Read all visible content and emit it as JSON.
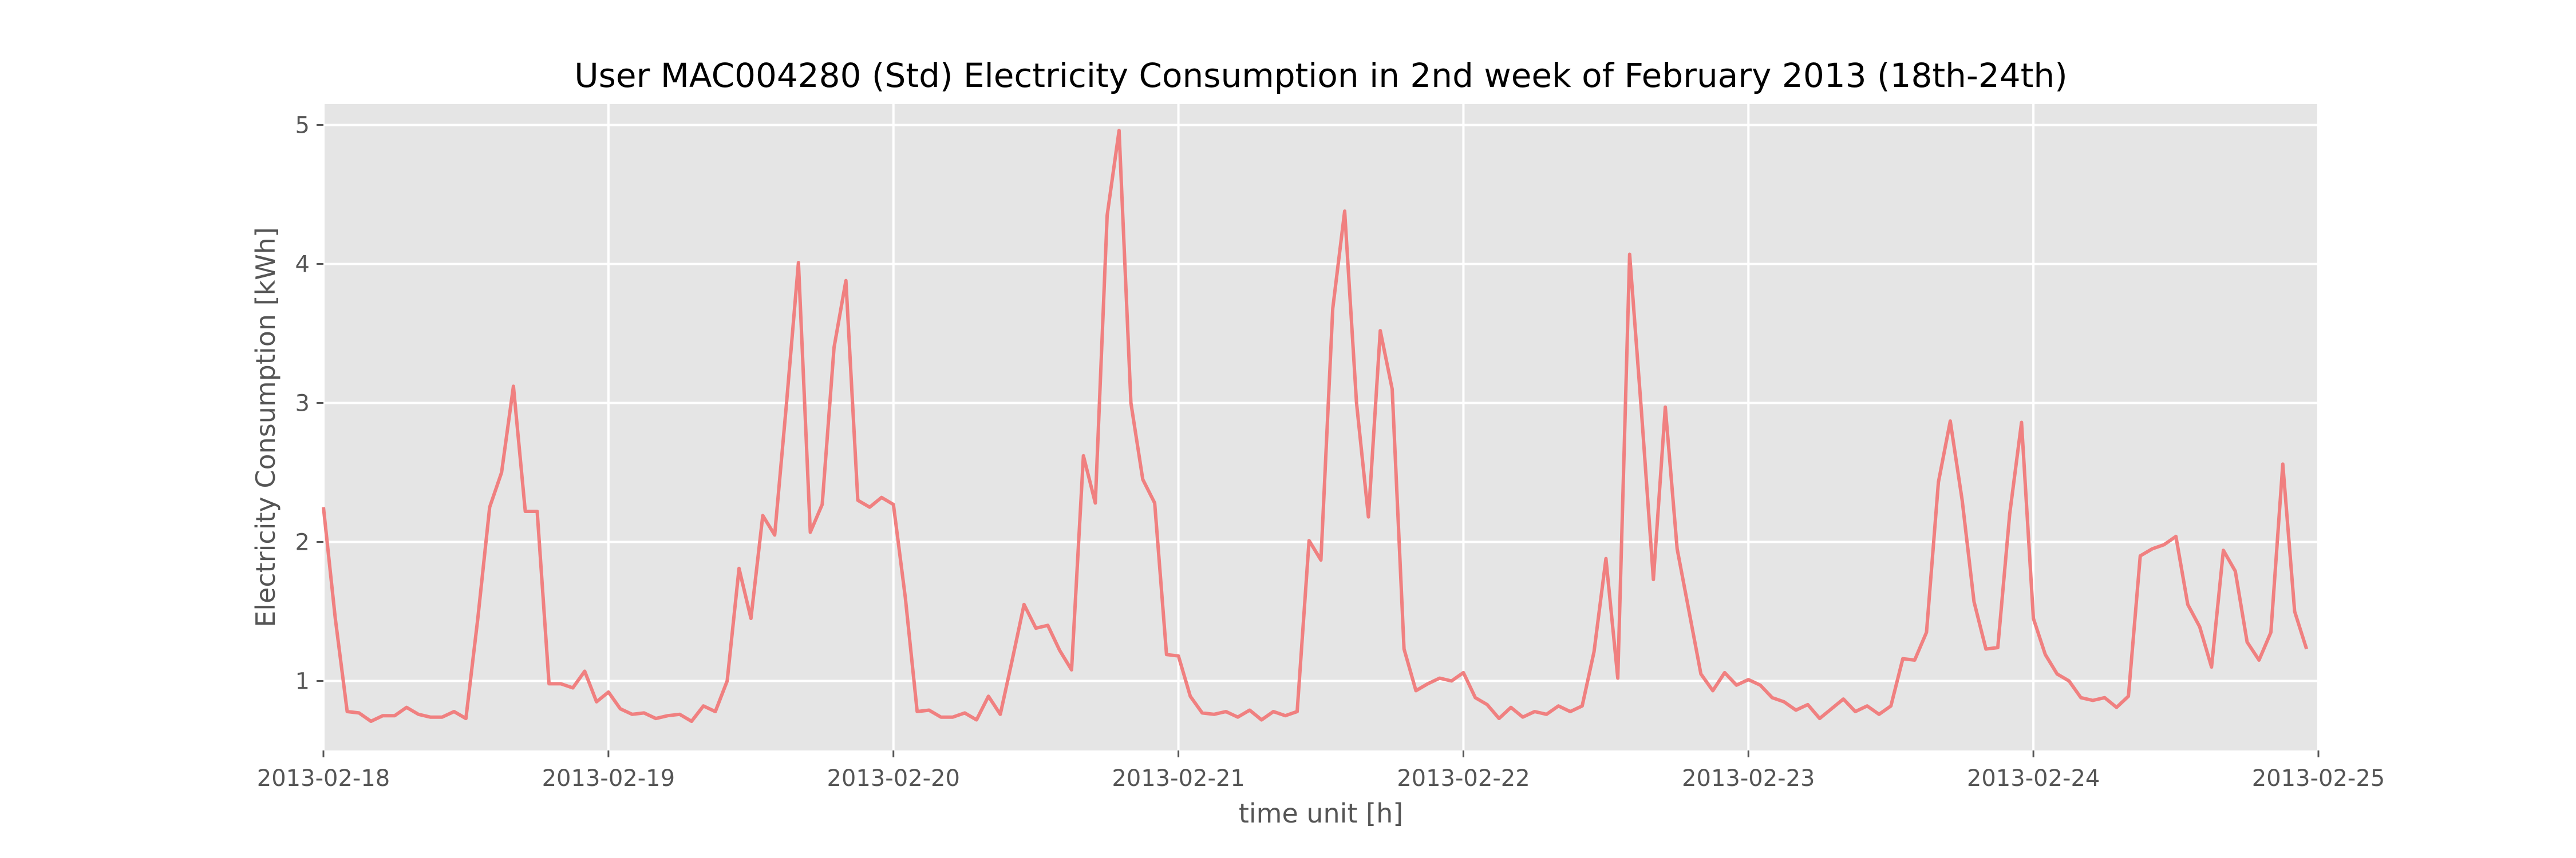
{
  "chart_data": {
    "type": "line",
    "title": "User MAC004280 (Std)  Electricity Consumption in 2nd week of February 2013 (18th-24th)",
    "xlabel": "time unit [h]",
    "ylabel": "Electricity Consumption [kWh]",
    "xlim": [
      "2013-02-18",
      "2013-02-25"
    ],
    "ylim": [
      0.5,
      5.15
    ],
    "x_ticks": [
      "2013-02-18",
      "2013-02-19",
      "2013-02-20",
      "2013-02-21",
      "2013-02-22",
      "2013-02-23",
      "2013-02-24",
      "2013-02-25"
    ],
    "y_ticks": [
      1,
      2,
      3,
      4,
      5
    ],
    "grid": true,
    "style": {
      "line_color": "#f08080",
      "plot_bg": "#e5e5e5",
      "grid_color": "#ffffff"
    },
    "x_start": "2013-02-18 00:00",
    "x_step_hours": 1,
    "series": [
      {
        "values": [
          2.25,
          1.45,
          0.78,
          0.77,
          0.71,
          0.75,
          0.75,
          0.81,
          0.76,
          0.74,
          0.74,
          0.78,
          0.73,
          1.45,
          2.25,
          2.5,
          3.12,
          2.22,
          2.22,
          0.98,
          0.98,
          0.95,
          1.07,
          0.85,
          0.92,
          0.8,
          0.76,
          0.77,
          0.73,
          0.75,
          0.76,
          0.71,
          0.82,
          0.78,
          1.0,
          1.81,
          1.45,
          2.19,
          2.05,
          3.0,
          4.01,
          2.07,
          2.27,
          3.4,
          3.88,
          2.3,
          2.25,
          2.32,
          2.27,
          1.6,
          0.78,
          0.79,
          0.74,
          0.74,
          0.77,
          0.72,
          0.89,
          0.76,
          1.15,
          1.55,
          1.38,
          1.4,
          1.22,
          1.08,
          2.62,
          2.28,
          4.35,
          4.96,
          3.0,
          2.45,
          2.28,
          1.19,
          1.18,
          0.89,
          0.77,
          0.76,
          0.78,
          0.74,
          0.79,
          0.72,
          0.78,
          0.75,
          0.78,
          2.01,
          1.87,
          3.68,
          4.38,
          3.0,
          2.18,
          3.52,
          3.1,
          1.23,
          0.93,
          0.98,
          1.02,
          1.0,
          1.06,
          0.88,
          0.83,
          0.73,
          0.81,
          0.74,
          0.78,
          0.76,
          0.82,
          0.78,
          0.82,
          1.21,
          1.88,
          1.02,
          4.07,
          2.93,
          1.73,
          2.97,
          1.95,
          1.5,
          1.05,
          0.93,
          1.06,
          0.97,
          1.01,
          0.97,
          0.88,
          0.85,
          0.79,
          0.83,
          0.73,
          0.8,
          0.87,
          0.78,
          0.82,
          0.76,
          0.82,
          1.16,
          1.15,
          1.35,
          2.43,
          2.87,
          2.3,
          1.57,
          1.23,
          1.24,
          2.2,
          2.86,
          1.45,
          1.19,
          1.05,
          1.0,
          0.88,
          0.86,
          0.88,
          0.81,
          0.89,
          1.9,
          1.95,
          1.98,
          2.04,
          1.55,
          1.39,
          1.1,
          1.94,
          1.79,
          1.28,
          1.15,
          1.35,
          2.56,
          1.5,
          1.23
        ]
      }
    ]
  }
}
